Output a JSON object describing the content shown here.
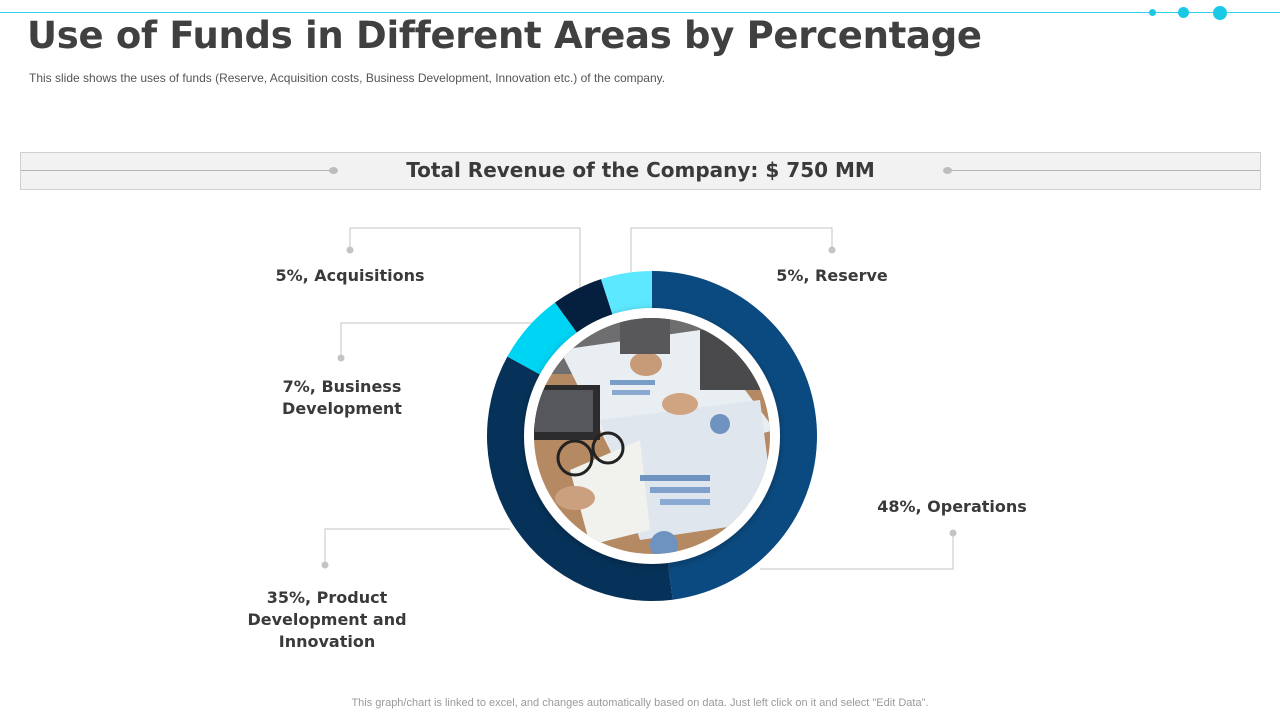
{
  "slide": {
    "title": "Use of Funds in Different Areas by Percentage",
    "subtitle": "This slide shows the uses of funds (Reserve,  Acquisition costs, Business Development,  Innovation  etc.) of the company.",
    "banner_text": "Total Revenue of the Company: $ 750 MM",
    "footnote": "This graph/chart is linked to excel,  and changes automatically based on data. Just left click on it and select \"Edit Data\"."
  },
  "colors": {
    "accent": "#19c9e6",
    "operations": "#0b4a80",
    "product_development": "#063259",
    "business_development": "#00d4f5",
    "acquisitions": "#05203f",
    "reserve": "#5ce8ff"
  },
  "photo": {
    "icon": "business-meeting-photo"
  },
  "chart_data": {
    "type": "pie",
    "donut": true,
    "categories": [
      "Operations",
      "Product Development and Innovation",
      "Business Development",
      "Acquisitions",
      "Reserve"
    ],
    "values": [
      48,
      35,
      7,
      5,
      5
    ],
    "unit": "%",
    "labels": {
      "reserve": "5%, Reserve",
      "acquisitions": "5%, Acquisitions",
      "business_development": [
        "7%, Business",
        "Development"
      ],
      "operations": "48%, Operations",
      "product_development": [
        "35%, Product",
        "Development and",
        "Innovation"
      ]
    }
  }
}
